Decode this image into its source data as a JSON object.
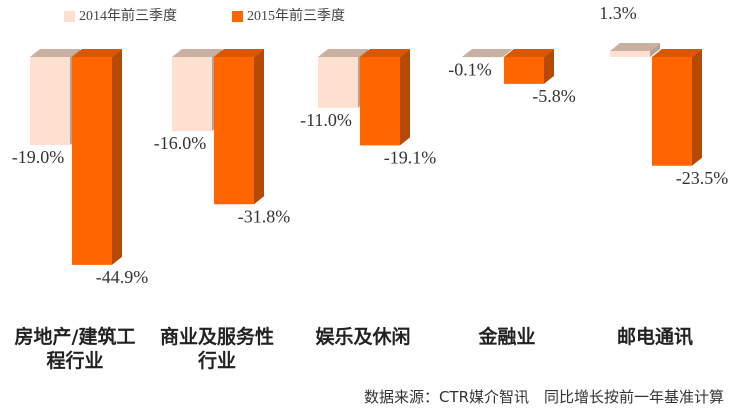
{
  "chart_data": {
    "type": "bar3d",
    "categories": [
      "房地产/建筑工程行业",
      "商业及服务性行业",
      "娱乐及休闲",
      "金融业",
      "邮电通讯"
    ],
    "series": [
      {
        "name": "2014年前三季度",
        "color": "#fde0cf",
        "values": [
          -19.0,
          -16.0,
          -11.0,
          -0.1,
          1.3
        ],
        "value_labels": [
          "-19.0%",
          "-16.0%",
          "-11.0%",
          "-0.1%",
          "1.3%"
        ]
      },
      {
        "name": "2015年前三季度",
        "color": "#ff6600",
        "values": [
          -44.9,
          -31.8,
          -19.1,
          -5.8,
          -23.5
        ],
        "value_labels": [
          "-44.9%",
          "-31.8%",
          "-19.1%",
          "-5.8%",
          "-23.5%"
        ]
      }
    ],
    "legend": "top-left",
    "source": "数据来源：CTR媒介智讯　同比增长按前一年基准计算"
  }
}
